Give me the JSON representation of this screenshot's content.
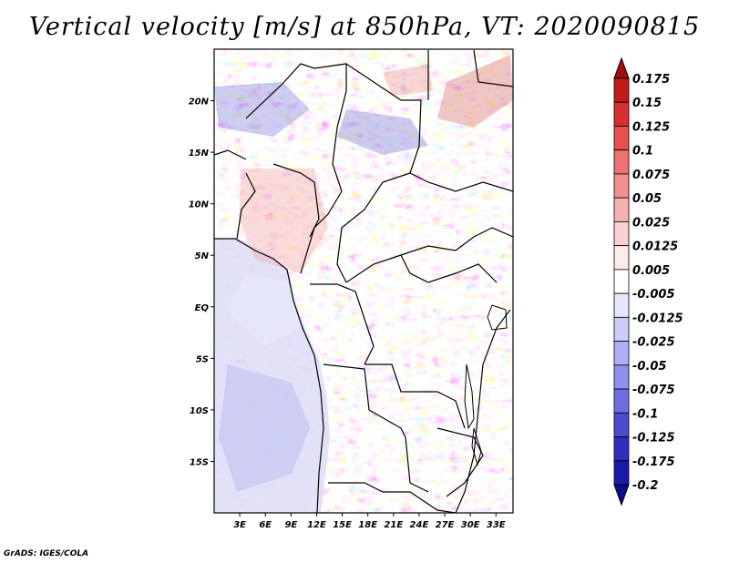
{
  "title": "Vertical velocity [m/s] at 850hPa, VT: 2020090815",
  "credit": "GrADS: IGES/COLA",
  "map": {
    "lon_range": [
      0,
      35
    ],
    "lat_range": [
      -20,
      25
    ],
    "lat_labels": [
      "20N",
      "15N",
      "10N",
      "5N",
      "EQ",
      "5S",
      "10S",
      "15S"
    ],
    "lat_values": [
      20,
      15,
      10,
      5,
      0,
      -5,
      -10,
      -15
    ],
    "lon_labels": [
      "3E",
      "6E",
      "9E",
      "12E",
      "15E",
      "18E",
      "21E",
      "24E",
      "27E",
      "30E",
      "33E"
    ],
    "lon_values": [
      3,
      6,
      9,
      12,
      15,
      18,
      21,
      24,
      27,
      30,
      33
    ]
  },
  "colorbar": {
    "labels": [
      "0.175",
      "0.15",
      "0.125",
      "0.1",
      "0.075",
      "0.05",
      "0.025",
      "0.0125",
      "0.005",
      "-0.005",
      "-0.0125",
      "-0.025",
      "-0.05",
      "-0.075",
      "-0.1",
      "-0.125",
      "-0.175",
      "-0.2"
    ],
    "colors": [
      "#a01010",
      "#c01c1c",
      "#d83030",
      "#e85050",
      "#ee7070",
      "#f29090",
      "#f6b0b0",
      "#fad0d0",
      "#fdeaea",
      "#ffffff",
      "#e6e6fc",
      "#ccccf8",
      "#aeaef4",
      "#9090ee",
      "#6e6ee2",
      "#4c4cd0",
      "#2e2ebc",
      "#1a1aa8",
      "#0c0c90"
    ]
  }
}
